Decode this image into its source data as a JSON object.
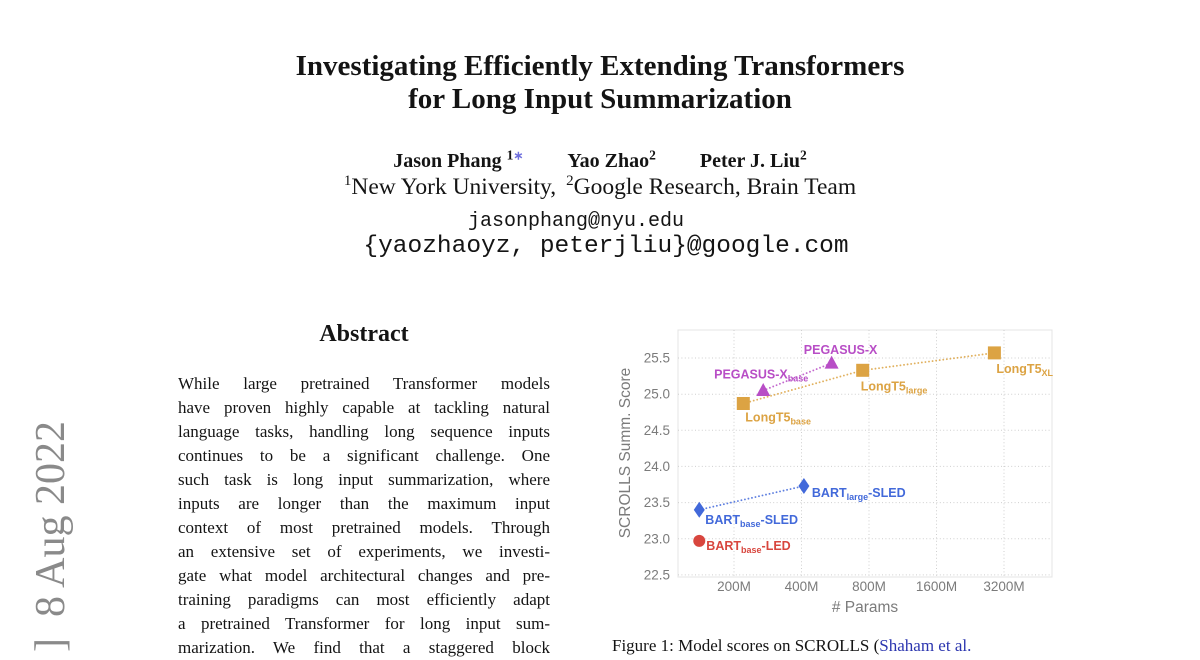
{
  "arxiv_stamp": {
    "text": "]  8 Aug 2022"
  },
  "header": {
    "title_line1": "Investigating Efficiently Extending Transformers",
    "title_line2": "for Long Input Summarization",
    "authors": [
      {
        "name": "Jason Phang ",
        "sup": "1",
        "star": "∗"
      },
      {
        "name": "Yao Zhao",
        "sup": "2",
        "star": ""
      },
      {
        "name": "Peter J. Liu",
        "sup": "2",
        "star": ""
      }
    ],
    "affiliations": [
      {
        "sup": "1",
        "text": "New York University,"
      },
      {
        "sup": "2",
        "text": "Google Research, Brain Team"
      }
    ],
    "email1": "jasonphang@nyu.edu",
    "email2": "{yaozhaoyz, peterjliu}@google.com"
  },
  "abstract": {
    "heading": "Abstract",
    "lines": [
      "While large pretrained Transformer models",
      "have proven highly capable at tackling natural",
      "language tasks, handling long sequence inputs",
      "continues to be a significant challenge.  One",
      "such task is long input summarization, where",
      "inputs are longer than the maximum input",
      "context of most pretrained models.  Through",
      "an extensive set of experiments, we investi-",
      "gate what model architectural changes and pre-",
      "training paradigms can most efficiently adapt",
      "a pretrained Transformer for long input sum-",
      "marization.  We find that a staggered block"
    ]
  },
  "figure": {
    "caption_prefix": "Figure 1: Model scores on SCROLLS (",
    "caption_citation": "Shaham et al.",
    "citation_color": "#2b35af"
  },
  "chart_data": {
    "type": "scatter",
    "xlabel": "# Params",
    "ylabel": "SCROLLS Summ. Score",
    "x_scale": "log2",
    "x_ticks": [
      {
        "label": "200M",
        "value": 200
      },
      {
        "label": "400M",
        "value": 400
      },
      {
        "label": "800M",
        "value": 800
      },
      {
        "label": "1600M",
        "value": 1600
      },
      {
        "label": "3200M",
        "value": 3200
      }
    ],
    "y_ticks": [
      25.5,
      25.0,
      24.5,
      24.0,
      23.5,
      23.0,
      22.5
    ],
    "ylim": [
      22.45,
      25.9
    ],
    "xlim": [
      115,
      5300
    ],
    "grid": "dotted",
    "axis_color": "#7b7b7b",
    "grid_color": "#cfcfcf",
    "series": [
      {
        "name": "PEGASUS-X",
        "color": "#b84ec6",
        "marker": "triangle",
        "points": [
          {
            "x": 270,
            "y": 25.05,
            "label": "PEGASUS-X",
            "sub": "base",
            "suffix": "",
            "anchor": "middle",
            "dx": -2,
            "dy": -12
          },
          {
            "x": 545,
            "y": 25.43,
            "label": "PEGASUS-X",
            "sub": "",
            "suffix": "",
            "anchor": "middle",
            "dx": 9,
            "dy": -9
          }
        ]
      },
      {
        "name": "LongT5",
        "color": "#dca343",
        "marker": "square",
        "points": [
          {
            "x": 220,
            "y": 24.87,
            "label": "LongT5",
            "sub": "base",
            "suffix": "",
            "anchor": "start",
            "dx": 2,
            "dy": 18
          },
          {
            "x": 750,
            "y": 25.33,
            "label": "LongT5",
            "sub": "large",
            "suffix": "",
            "anchor": "start",
            "dx": -2,
            "dy": 20
          },
          {
            "x": 2900,
            "y": 25.57,
            "label": "LongT5",
            "sub": "XL",
            "suffix": "",
            "anchor": "start",
            "dx": 2,
            "dy": 20
          }
        ]
      },
      {
        "name": "BART-SLED",
        "color": "#4269da",
        "marker": "diamond",
        "points": [
          {
            "x": 140,
            "y": 23.4,
            "label": "BART",
            "sub": "base",
            "suffix": "-SLED",
            "anchor": "start",
            "dx": 6,
            "dy": 14
          },
          {
            "x": 410,
            "y": 23.73,
            "label": "BART",
            "sub": "large",
            "suffix": "-SLED",
            "anchor": "start",
            "dx": 8,
            "dy": 11
          }
        ]
      },
      {
        "name": "BART-LED",
        "color": "#d8463e",
        "marker": "circle",
        "points": [
          {
            "x": 140,
            "y": 22.97,
            "label": "BART",
            "sub": "base",
            "suffix": "-LED",
            "anchor": "start",
            "dx": 7,
            "dy": 9
          }
        ]
      }
    ]
  }
}
